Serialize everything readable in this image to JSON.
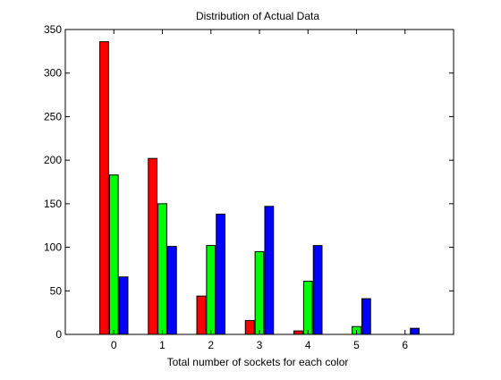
{
  "chart_data": {
    "type": "bar",
    "title": "Distribution of Actual Data",
    "xlabel": "Total number of sockets for each color",
    "ylabel": "",
    "categories": [
      "0",
      "1",
      "2",
      "3",
      "4",
      "5",
      "6"
    ],
    "xlim": [
      -1,
      7
    ],
    "ylim": [
      0,
      350
    ],
    "yticks": [
      0,
      50,
      100,
      150,
      200,
      250,
      300,
      350
    ],
    "grid": false,
    "legend": "none",
    "series": [
      {
        "color": "#ff0000",
        "values": [
          336,
          202,
          44,
          16,
          4,
          0,
          0
        ]
      },
      {
        "color": "#00ff00",
        "values": [
          183,
          150,
          102,
          95,
          61,
          9,
          0
        ]
      },
      {
        "color": "#0000ff",
        "values": [
          66,
          101,
          138,
          147,
          102,
          41,
          7
        ]
      }
    ]
  }
}
